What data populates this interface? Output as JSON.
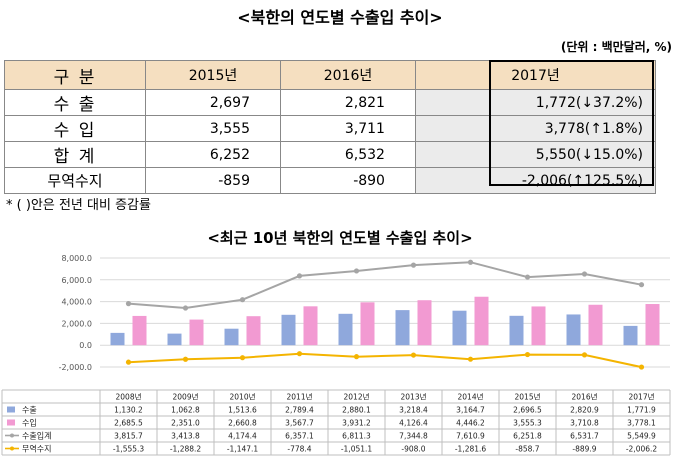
{
  "title": "<북한의 연도별 수출입 추이>",
  "unit": "(단위 : 백만달러, %)",
  "table": {
    "header": [
      "구 분",
      "2015년",
      "2016년",
      "2017년"
    ],
    "rows": [
      {
        "label": "수 출",
        "v2015": "2,697",
        "v2016": "2,821",
        "v2017": "1,772(↓37.2%)"
      },
      {
        "label": "수 입",
        "v2015": "3,555",
        "v2016": "3,711",
        "v2017": "3,778(↑1.8%)"
      },
      {
        "label": "합 계",
        "v2015": "6,252",
        "v2016": "6,532",
        "v2017": "5,550(↓15.0%)"
      },
      {
        "label": "무역수지",
        "v2015": "-859",
        "v2016": "-890",
        "v2017": "-2,006(↑125.5%)"
      }
    ]
  },
  "footnote": "* (    )안은 전년 대비 증감률",
  "chart_title": "<최근 10년 북한의 연도별 수출입 추이>",
  "chart_data": {
    "type": "bar",
    "title": "<최근 10년 북한의 연도별 수출입 추이>",
    "categories": [
      "2008년",
      "2009년",
      "2010년",
      "2011년",
      "2012년",
      "2013년",
      "2014년",
      "2015년",
      "2016년",
      "2017년"
    ],
    "y_ticks": [
      "8,000.0",
      "6,000.0",
      "4,000.0",
      "2,000.0",
      "0.0",
      "-2,000.0"
    ],
    "ylim": [
      -2000,
      8000
    ],
    "grid": true,
    "legend": "bottom-left table",
    "series": [
      {
        "name": "수출",
        "kind": "bar",
        "color": "#8fa8dc",
        "values": [
          1130.2,
          1062.8,
          1513.6,
          2789.4,
          2880.1,
          3218.4,
          3164.7,
          2696.5,
          2820.9,
          1771.9
        ],
        "labels": [
          "1,130.2",
          "1,062.8",
          "1,513.6",
          "2,789.4",
          "2,880.1",
          "3,218.4",
          "3,164.7",
          "2,696.5",
          "2,820.9",
          "1,771.9"
        ]
      },
      {
        "name": "수입",
        "kind": "bar",
        "color": "#f29ad2",
        "values": [
          2685.5,
          2351.0,
          2660.8,
          3567.7,
          3931.2,
          4126.4,
          4446.2,
          3555.3,
          3710.8,
          3778.1
        ],
        "labels": [
          "2,685.5",
          "2,351.0",
          "2,660.8",
          "3,567.7",
          "3,931.2",
          "4,126.4",
          "4,446.2",
          "3,555.3",
          "3,710.8",
          "3,778.1"
        ]
      },
      {
        "name": "수출입계",
        "kind": "line",
        "color": "#a5a5a5",
        "values": [
          3815.7,
          3413.8,
          4174.4,
          6357.1,
          6811.3,
          7344.8,
          7610.9,
          6251.8,
          6531.7,
          5549.9
        ],
        "labels": [
          "3,815.7",
          "3,413.8",
          "4,174.4",
          "6,357.1",
          "6,811.3",
          "7,344.8",
          "7,610.9",
          "6,251.8",
          "6,531.7",
          "5,549.9"
        ]
      },
      {
        "name": "무역수지",
        "kind": "line",
        "color": "#f4b400",
        "values": [
          -1555.3,
          -1288.2,
          -1147.1,
          -778.4,
          -1051.1,
          -908.0,
          -1281.6,
          -858.7,
          -889.9,
          -2006.2
        ],
        "labels": [
          "-1,555.3",
          "-1,288.2",
          "-1,147.1",
          "-778.4",
          "-1,051.1",
          "-908.0",
          "-1,281.6",
          "-858.7",
          "-889.9",
          "-2,006.2"
        ]
      }
    ]
  }
}
